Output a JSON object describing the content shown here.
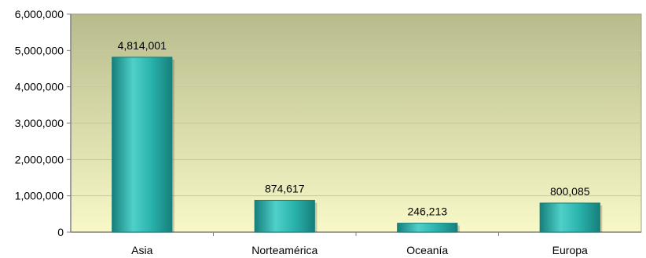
{
  "chart_data": {
    "type": "bar",
    "categories": [
      "Asia",
      "Norteamérica",
      "Oceanía",
      "Europa"
    ],
    "values": [
      4814001,
      874617,
      246213,
      800085
    ],
    "data_labels": [
      "4,814,001",
      "874,617",
      "246,213",
      "800,085"
    ],
    "title": "",
    "xlabel": "",
    "ylabel": "",
    "ylim": [
      0,
      6000000
    ],
    "yticks": [
      0,
      1000000,
      2000000,
      3000000,
      4000000,
      5000000,
      6000000
    ],
    "ytick_labels": [
      "0",
      "1,000,000",
      "2,000,000",
      "3,000,000",
      "4,000,000",
      "5,000,000",
      "6,000,000"
    ],
    "grid": true,
    "legend": "none",
    "colors": {
      "bar_light": "#4fd0c9",
      "bar_mid": "#2ab3ad",
      "bar_dark": "#167f7b",
      "plot_top": "#b8bc8c",
      "plot_bottom": "#f8f8c8",
      "gridline": "#c9c9a0",
      "axis": "#808080"
    }
  }
}
